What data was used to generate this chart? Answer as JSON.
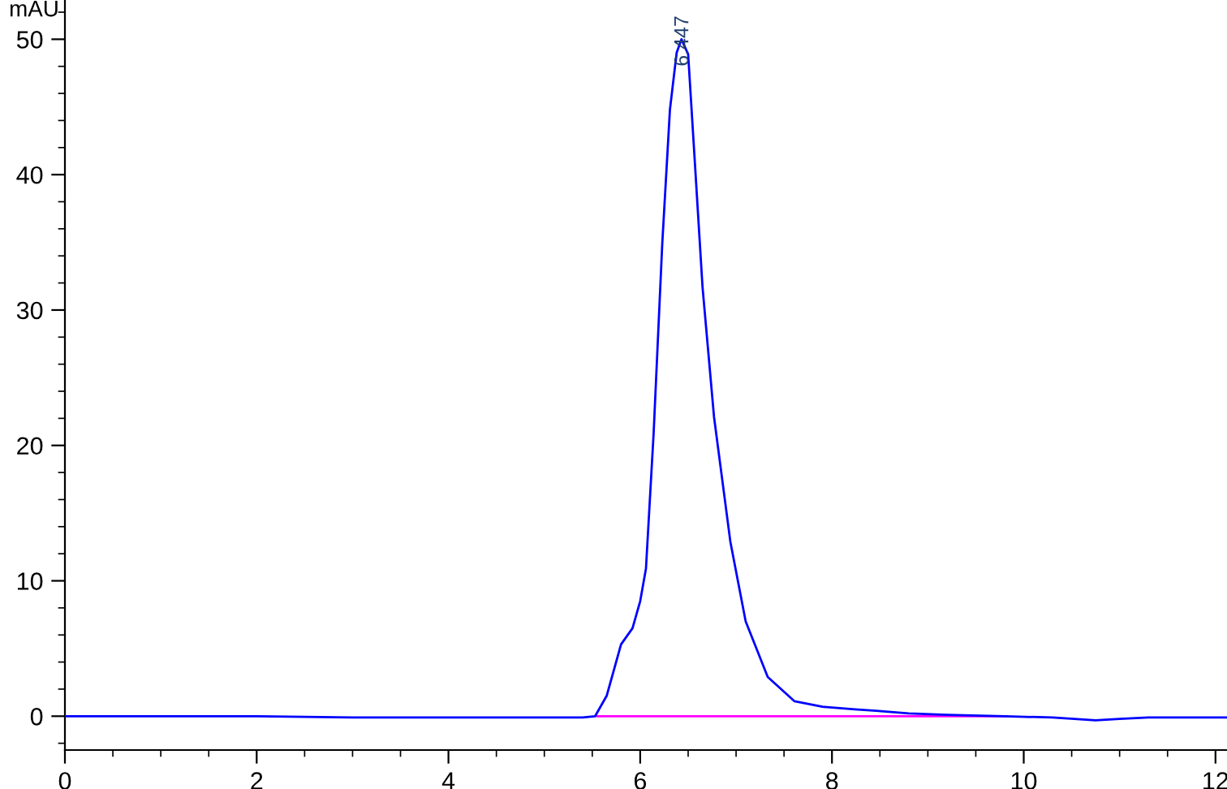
{
  "chart_data": {
    "type": "line",
    "ylabel": "mAU",
    "x": [
      0,
      1,
      2,
      3,
      4,
      5,
      5.4,
      5.53,
      5.65,
      5.8,
      5.92,
      6.0,
      6.06,
      6.14,
      6.23,
      6.31,
      6.38,
      6.43,
      6.5,
      6.57,
      6.65,
      6.77,
      6.94,
      7.1,
      7.33,
      7.61,
      7.9,
      8.24,
      8.46,
      8.8,
      9.2,
      9.8,
      10.3,
      10.75,
      11.0,
      11.3,
      11.8,
      12.12
    ],
    "series": [
      {
        "color": "#0000ff",
        "values": [
          0,
          0,
          0,
          -0.1,
          -0.1,
          -0.1,
          -0.1,
          0,
          1.5,
          5.3,
          6.5,
          8.5,
          10.9,
          20.9,
          34.9,
          44.8,
          49,
          50,
          48.9,
          40.9,
          31.7,
          22.1,
          12.9,
          7.0,
          2.9,
          1.1,
          0.7,
          0.5,
          0.4,
          0.2,
          0.1,
          0,
          -0.1,
          -0.3,
          -0.2,
          -0.1,
          -0.1,
          -0.1
        ]
      },
      {
        "color": "#ff00ff",
        "x": [
          5.55,
          9.83
        ],
        "values": [
          0,
          0
        ]
      }
    ],
    "annotations": [
      {
        "text": "6.447",
        "x": 6.447,
        "y": 48
      }
    ],
    "xlim": [
      0,
      12.12
    ],
    "ylim": [
      -2.5,
      52.9
    ],
    "xticks": [
      0,
      2,
      4,
      6,
      8,
      10,
      12
    ],
    "yticks": [
      0,
      10,
      20,
      30,
      40,
      50
    ],
    "grid": false,
    "marker": "none",
    "line_style": "solid"
  }
}
